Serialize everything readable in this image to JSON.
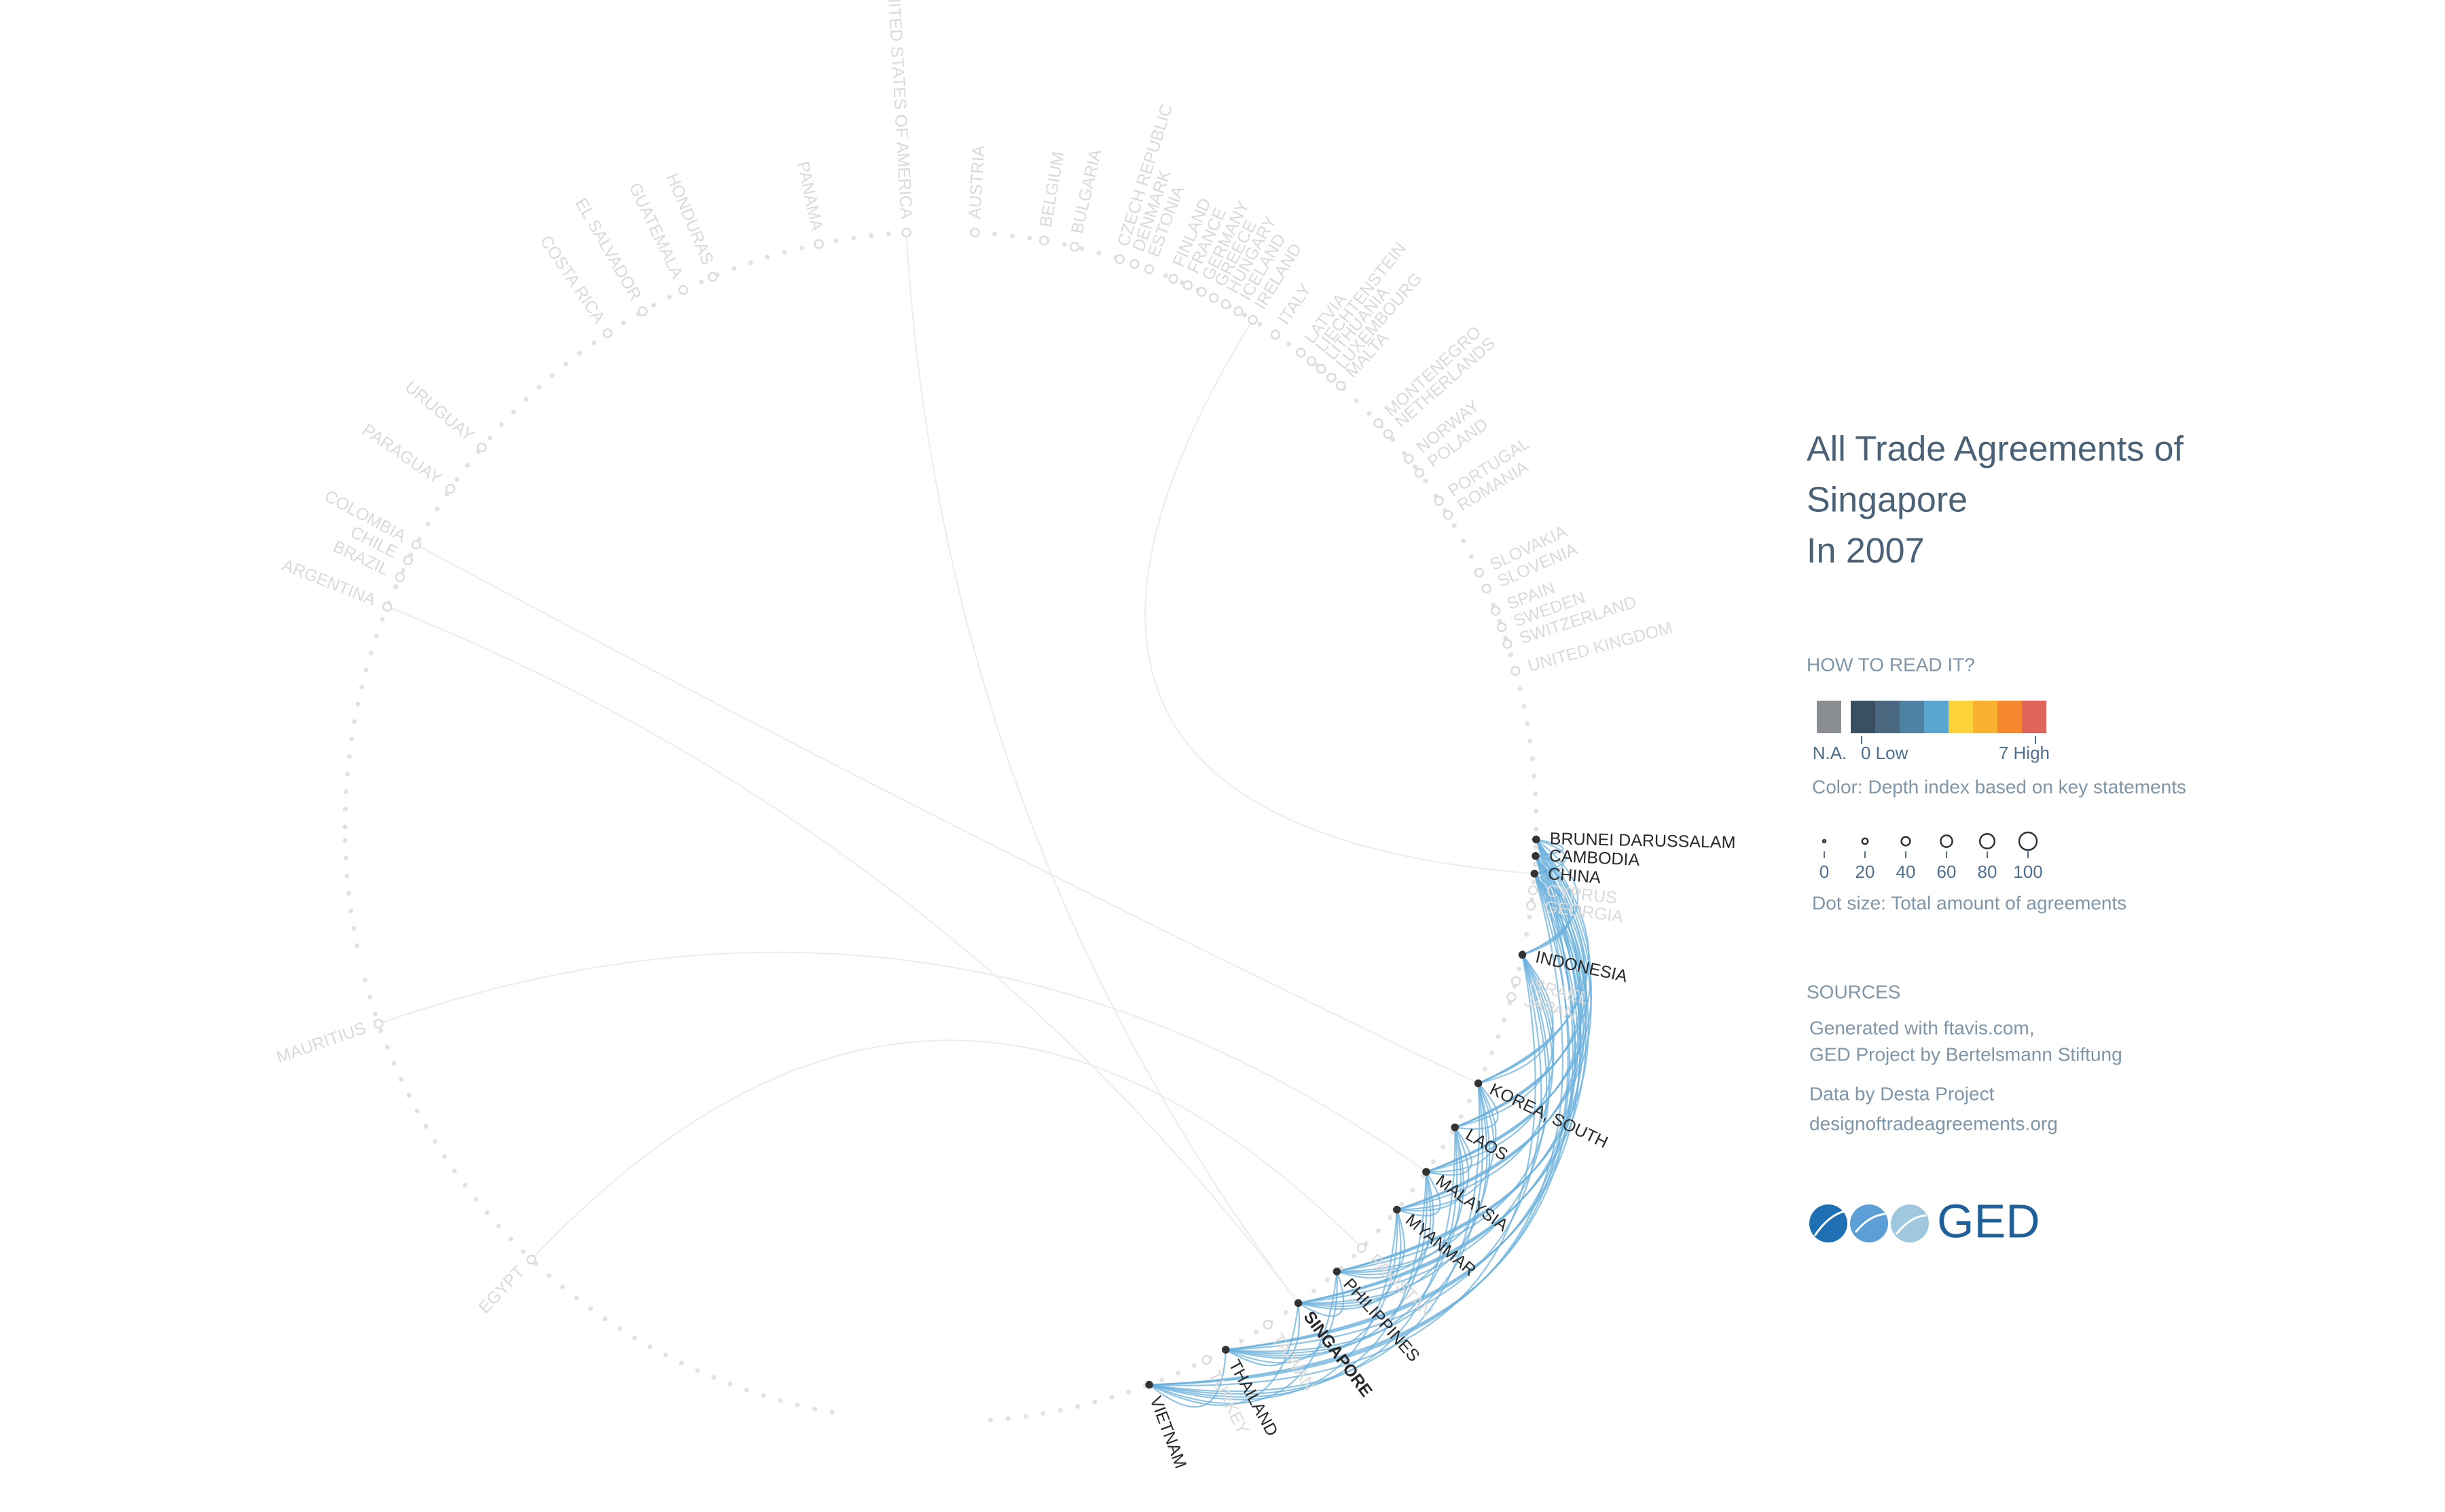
{
  "title": [
    "All Trade Agreements of",
    "Singapore",
    "In 2007"
  ],
  "how_to_read": "HOW TO READ IT?",
  "color_legend": {
    "na": "N.A.",
    "low": "0 Low",
    "high": "7 High",
    "caption": "Color: Depth index based on key statements"
  },
  "size_legend": {
    "values": [
      0,
      20,
      40,
      60,
      80,
      100
    ],
    "caption": "Dot size: Total amount of agreements"
  },
  "sources": {
    "heading": "SOURCES",
    "lines": [
      "Generated with ftavis.com,",
      "GED Project by Bertelsmann Stiftung",
      "Data by Desta Project",
      "designoftradeagreements.org"
    ]
  },
  "logo": "GED",
  "countries": [
    {
      "label": "UNITED STATES OF AMERICA",
      "active": false
    },
    {
      "label": "AUSTRIA",
      "active": false
    },
    {
      "label": "BELGIUM",
      "active": false
    },
    {
      "label": "BULGARIA",
      "active": false
    },
    {
      "label": "CZECH REPUBLIC",
      "active": false
    },
    {
      "label": "DENMARK",
      "active": false
    },
    {
      "label": "ESTONIA",
      "active": false
    },
    {
      "label": "FINLAND",
      "active": false
    },
    {
      "label": "FRANCE",
      "active": false
    },
    {
      "label": "GERMANY",
      "active": false
    },
    {
      "label": "GREECE",
      "active": false
    },
    {
      "label": "HUNGARY",
      "active": false
    },
    {
      "label": "ICELAND",
      "active": false
    },
    {
      "label": "IRELAND",
      "active": false
    },
    {
      "label": "ITALY",
      "active": false
    },
    {
      "label": "LATVIA",
      "active": false
    },
    {
      "label": "LIECHTENSTEIN",
      "active": false
    },
    {
      "label": "LITHUANIA",
      "active": false
    },
    {
      "label": "LUXEMBOURG",
      "active": false
    },
    {
      "label": "MALTA",
      "active": false
    },
    {
      "label": "MONTENEGRO",
      "active": false
    },
    {
      "label": "NETHERLANDS",
      "active": false
    },
    {
      "label": "NORWAY",
      "active": false
    },
    {
      "label": "POLAND",
      "active": false
    },
    {
      "label": "PORTUGAL",
      "active": false
    },
    {
      "label": "ROMANIA",
      "active": false
    },
    {
      "label": "SLOVAKIA",
      "active": false
    },
    {
      "label": "SLOVENIA",
      "active": false
    },
    {
      "label": "SPAIN",
      "active": false
    },
    {
      "label": "SWEDEN",
      "active": false
    },
    {
      "label": "SWITZERLAND",
      "active": false
    },
    {
      "label": "UNITED KINGDOM",
      "active": false
    },
    {
      "label": "BRUNEI DARUSSALAM",
      "active": true
    },
    {
      "label": "CAMBODIA",
      "active": true
    },
    {
      "label": "CHINA",
      "active": true
    },
    {
      "label": "CYPRUS",
      "active": false
    },
    {
      "label": "GEORGIA",
      "active": false
    },
    {
      "label": "INDONESIA",
      "active": true
    },
    {
      "label": "ISRAEL",
      "active": false
    },
    {
      "label": "JAPAN",
      "active": false
    },
    {
      "label": "KOREA, SOUTH",
      "active": true
    },
    {
      "label": "LAOS",
      "active": true
    },
    {
      "label": "MALAYSIA",
      "active": true
    },
    {
      "label": "MYANMAR",
      "active": true
    },
    {
      "label": "PAKISTAN",
      "active": false
    },
    {
      "label": "PHILIPPINES",
      "active": true
    },
    {
      "label": "SINGAPORE",
      "active": true
    },
    {
      "label": "TAIWAN",
      "active": false
    },
    {
      "label": "THAILAND",
      "active": true
    },
    {
      "label": "TURKEY",
      "active": false
    },
    {
      "label": "VIETNAM",
      "active": true
    },
    {
      "label": "EGYPT",
      "active": false
    },
    {
      "label": "MAURITIUS",
      "active": false
    },
    {
      "label": "ARGENTINA",
      "active": false
    },
    {
      "label": "BRAZIL",
      "active": false
    },
    {
      "label": "CHILE",
      "active": false
    },
    {
      "label": "COLOMBIA",
      "active": false
    },
    {
      "label": "PARAGUAY",
      "active": false
    },
    {
      "label": "URUGUAY",
      "active": false
    },
    {
      "label": "COSTA RICA",
      "active": false
    },
    {
      "label": "EL SALVADOR",
      "active": false
    },
    {
      "label": "GUATEMALA",
      "active": false
    },
    {
      "label": "HONDURAS",
      "active": false
    },
    {
      "label": "PANAMA",
      "active": false
    }
  ]
}
